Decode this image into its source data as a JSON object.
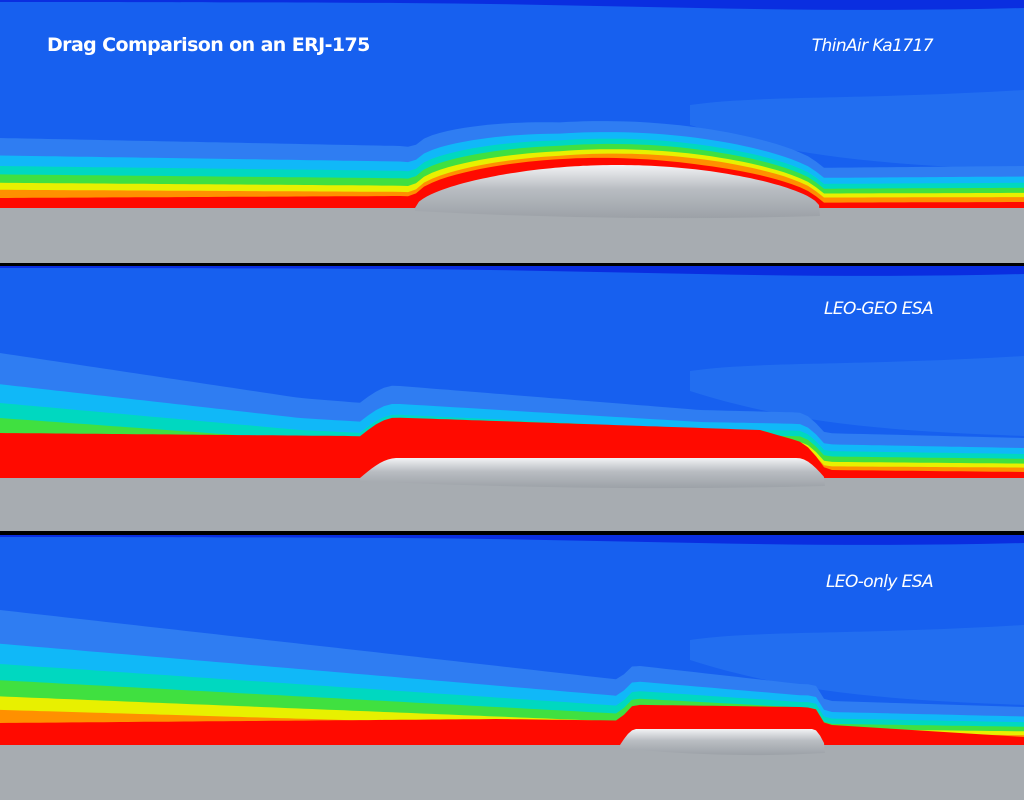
{
  "title": "Drag Comparison on an ERJ-175",
  "panels": [
    {
      "label": "ThinAir Ka1717"
    },
    {
      "label": "LEO-GEO ESA"
    },
    {
      "label": "LEO-only ESA"
    }
  ]
}
